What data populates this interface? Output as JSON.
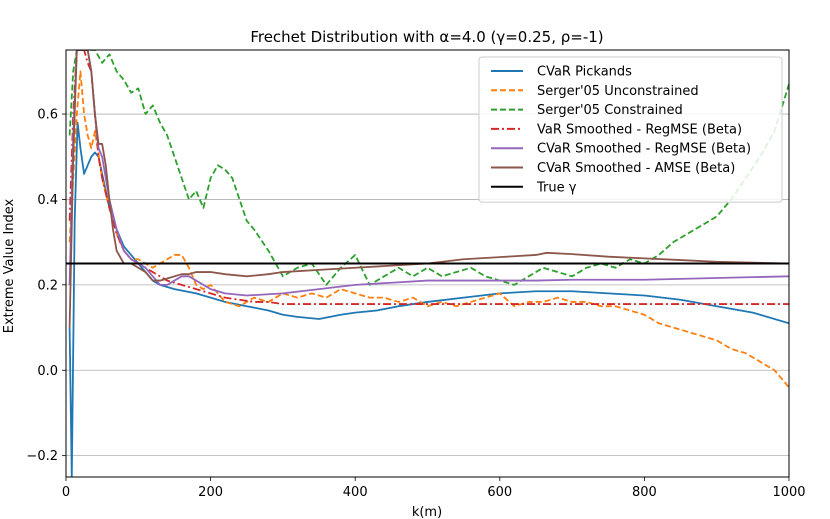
{
  "chart_data": {
    "type": "line",
    "title": "Frechet Distribution with α=4.0 (γ=0.25, ρ=-1)",
    "xlabel": "k(m)",
    "ylabel": "Extreme Value Index",
    "xlim": [
      0,
      1000
    ],
    "ylim": [
      -0.25,
      0.75
    ],
    "xticks": [
      0,
      200,
      400,
      600,
      800,
      1000
    ],
    "yticks": [
      -0.2,
      0.0,
      0.2,
      0.4,
      0.6
    ],
    "xtick_labels": [
      "0",
      "200",
      "400",
      "600",
      "800",
      "1000"
    ],
    "ytick_labels": [
      "−0.2",
      "0.0",
      "0.2",
      "0.4",
      "0.6"
    ],
    "grid": "horizontal",
    "legend_position": "top-right",
    "series": [
      {
        "name": "CVaR Pickands",
        "color": "#1f77b4",
        "dash": "solid",
        "x": [
          5,
          8,
          12,
          16,
          20,
          25,
          30,
          35,
          40,
          45,
          50,
          55,
          60,
          70,
          80,
          90,
          100,
          110,
          120,
          130,
          150,
          180,
          200,
          220,
          250,
          280,
          300,
          320,
          350,
          380,
          400,
          430,
          460,
          500,
          550,
          600,
          650,
          700,
          750,
          800,
          850,
          900,
          950,
          1000
        ],
        "y": [
          0.1,
          -0.25,
          0.35,
          0.58,
          0.52,
          0.46,
          0.48,
          0.5,
          0.51,
          0.5,
          0.46,
          0.42,
          0.38,
          0.33,
          0.29,
          0.27,
          0.25,
          0.23,
          0.21,
          0.2,
          0.19,
          0.18,
          0.17,
          0.16,
          0.15,
          0.14,
          0.13,
          0.125,
          0.12,
          0.13,
          0.135,
          0.14,
          0.15,
          0.16,
          0.17,
          0.18,
          0.185,
          0.185,
          0.18,
          0.175,
          0.165,
          0.15,
          0.135,
          0.11
        ]
      },
      {
        "name": "Serger'05 Unconstrained",
        "color": "#ff7f0e",
        "dash": "dashed",
        "x": [
          5,
          10,
          15,
          20,
          25,
          30,
          35,
          40,
          50,
          60,
          70,
          80,
          90,
          100,
          110,
          120,
          130,
          140,
          150,
          160,
          170,
          180,
          190,
          200,
          210,
          220,
          240,
          260,
          280,
          300,
          320,
          340,
          360,
          380,
          400,
          420,
          440,
          460,
          480,
          500,
          520,
          540,
          560,
          580,
          600,
          620,
          640,
          660,
          680,
          700,
          720,
          740,
          760,
          780,
          800,
          820,
          840,
          860,
          880,
          900,
          920,
          940,
          960,
          980,
          1000
        ],
        "y": [
          0.3,
          0.45,
          0.6,
          0.7,
          0.6,
          0.55,
          0.52,
          0.56,
          0.45,
          0.38,
          0.32,
          0.28,
          0.26,
          0.26,
          0.25,
          0.24,
          0.25,
          0.26,
          0.27,
          0.27,
          0.24,
          0.2,
          0.19,
          0.2,
          0.18,
          0.16,
          0.15,
          0.17,
          0.16,
          0.18,
          0.17,
          0.18,
          0.17,
          0.19,
          0.18,
          0.17,
          0.17,
          0.16,
          0.17,
          0.15,
          0.16,
          0.15,
          0.16,
          0.17,
          0.18,
          0.15,
          0.16,
          0.16,
          0.17,
          0.16,
          0.16,
          0.15,
          0.15,
          0.14,
          0.13,
          0.11,
          0.1,
          0.09,
          0.08,
          0.07,
          0.05,
          0.04,
          0.02,
          0.0,
          -0.04
        ]
      },
      {
        "name": "Serger'05 Constrained",
        "color": "#2ca02c",
        "dash": "dashed",
        "x": [
          5,
          10,
          15,
          20,
          30,
          40,
          50,
          60,
          70,
          80,
          90,
          100,
          110,
          120,
          130,
          140,
          150,
          160,
          170,
          180,
          190,
          200,
          210,
          220,
          230,
          240,
          250,
          260,
          280,
          300,
          320,
          340,
          360,
          380,
          400,
          420,
          440,
          460,
          480,
          500,
          520,
          540,
          560,
          580,
          600,
          620,
          640,
          660,
          680,
          700,
          720,
          740,
          760,
          780,
          800,
          820,
          840,
          860,
          880,
          900,
          920,
          940,
          960,
          980,
          1000
        ],
        "y": [
          0.55,
          0.7,
          0.75,
          0.75,
          0.75,
          0.75,
          0.72,
          0.74,
          0.7,
          0.68,
          0.65,
          0.66,
          0.6,
          0.62,
          0.58,
          0.55,
          0.5,
          0.45,
          0.4,
          0.42,
          0.38,
          0.45,
          0.48,
          0.47,
          0.45,
          0.4,
          0.35,
          0.33,
          0.28,
          0.22,
          0.24,
          0.25,
          0.2,
          0.24,
          0.27,
          0.2,
          0.22,
          0.24,
          0.22,
          0.24,
          0.22,
          0.23,
          0.24,
          0.22,
          0.21,
          0.2,
          0.22,
          0.24,
          0.23,
          0.22,
          0.24,
          0.25,
          0.24,
          0.26,
          0.25,
          0.27,
          0.3,
          0.32,
          0.34,
          0.36,
          0.4,
          0.45,
          0.5,
          0.56,
          0.67
        ]
      },
      {
        "name": "VaR Smoothed - RegMSE (Beta)",
        "color": "#d62728",
        "dash": "dashdot",
        "x": [
          5,
          10,
          15,
          20,
          25,
          30,
          35,
          40,
          45,
          50,
          60,
          70,
          80,
          90,
          100,
          120,
          140,
          160,
          180,
          200,
          220,
          240,
          260,
          280,
          300,
          350,
          400,
          450,
          500,
          550,
          600,
          650,
          700,
          750,
          800,
          850,
          900,
          950,
          1000
        ],
        "y": [
          0.35,
          0.6,
          0.75,
          0.75,
          0.75,
          0.72,
          0.7,
          0.6,
          0.5,
          0.45,
          0.38,
          0.32,
          0.28,
          0.26,
          0.25,
          0.23,
          0.21,
          0.2,
          0.19,
          0.18,
          0.17,
          0.165,
          0.16,
          0.16,
          0.155,
          0.155,
          0.155,
          0.155,
          0.155,
          0.155,
          0.155,
          0.155,
          0.155,
          0.155,
          0.155,
          0.155,
          0.155,
          0.155,
          0.155
        ]
      },
      {
        "name": "CVaR Smoothed - RegMSE (Beta)",
        "color": "#9467bd",
        "dash": "solid",
        "x": [
          5,
          10,
          15,
          20,
          25,
          30,
          35,
          40,
          45,
          50,
          55,
          60,
          70,
          80,
          90,
          100,
          110,
          120,
          130,
          140,
          150,
          160,
          170,
          180,
          200,
          220,
          250,
          300,
          350,
          400,
          450,
          500,
          550,
          600,
          650,
          700,
          750,
          800,
          850,
          900,
          950,
          1000
        ],
        "y": [
          0.2,
          0.55,
          0.75,
          0.75,
          0.75,
          0.75,
          0.7,
          0.6,
          0.52,
          0.5,
          0.45,
          0.4,
          0.33,
          0.28,
          0.26,
          0.25,
          0.24,
          0.22,
          0.2,
          0.2,
          0.21,
          0.22,
          0.22,
          0.21,
          0.19,
          0.18,
          0.175,
          0.18,
          0.19,
          0.2,
          0.205,
          0.21,
          0.21,
          0.21,
          0.21,
          0.212,
          0.212,
          0.212,
          0.214,
          0.216,
          0.218,
          0.22
        ]
      },
      {
        "name": "CVaR Smoothed - AMSE (Beta)",
        "color": "#8c564b",
        "dash": "solid",
        "x": [
          5,
          10,
          15,
          20,
          25,
          30,
          35,
          40,
          45,
          50,
          55,
          60,
          65,
          70,
          80,
          90,
          100,
          110,
          120,
          130,
          140,
          150,
          160,
          170,
          180,
          200,
          220,
          250,
          280,
          300,
          350,
          400,
          450,
          500,
          550,
          600,
          650,
          665,
          700,
          750,
          800,
          850,
          900,
          950,
          1000
        ],
        "y": [
          0.1,
          0.5,
          0.75,
          0.75,
          0.75,
          0.75,
          0.7,
          0.6,
          0.53,
          0.53,
          0.48,
          0.4,
          0.33,
          0.28,
          0.25,
          0.25,
          0.24,
          0.23,
          0.21,
          0.21,
          0.215,
          0.22,
          0.225,
          0.225,
          0.23,
          0.23,
          0.225,
          0.22,
          0.225,
          0.23,
          0.235,
          0.24,
          0.245,
          0.25,
          0.26,
          0.265,
          0.27,
          0.275,
          0.272,
          0.266,
          0.262,
          0.258,
          0.254,
          0.252,
          0.25
        ]
      },
      {
        "name": "True γ",
        "color": "#000000",
        "dash": "solid",
        "x": [
          0,
          1000
        ],
        "y": [
          0.25,
          0.25
        ]
      }
    ]
  }
}
